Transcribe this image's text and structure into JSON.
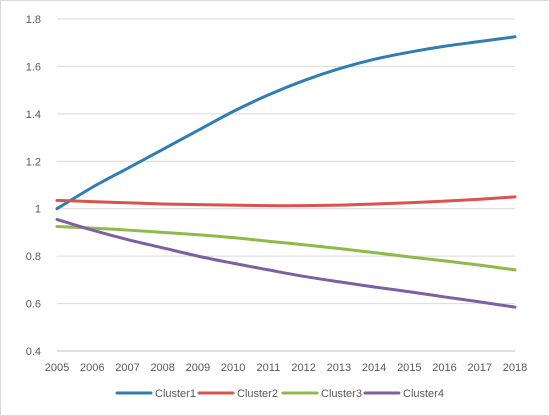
{
  "chart_data": {
    "type": "line",
    "title": "",
    "xlabel": "",
    "ylabel": "",
    "x": [
      "2005",
      "2006",
      "2007",
      "2008",
      "2009",
      "2010",
      "2011",
      "2012",
      "2013",
      "2014",
      "2015",
      "2016",
      "2017",
      "2018"
    ],
    "ylim": [
      0.4,
      1.8
    ],
    "yticks": [
      0.4,
      0.6,
      0.8,
      1,
      1.2,
      1.4,
      1.6,
      1.8
    ],
    "ytick_labels": [
      "0.4",
      "0.6",
      "0.8",
      "1",
      "1.2",
      "1.4",
      "1.6",
      "1.8"
    ],
    "grid": true,
    "legend_position": "bottom",
    "series": [
      {
        "name": "Cluster1",
        "color": "#2E7EB3",
        "values": [
          1.0,
          1.09,
          1.17,
          1.25,
          1.33,
          1.41,
          1.48,
          1.54,
          1.59,
          1.63,
          1.66,
          1.685,
          1.705,
          1.725
        ]
      },
      {
        "name": "Cluster2",
        "color": "#D9534F",
        "values": [
          1.035,
          1.03,
          1.025,
          1.02,
          1.017,
          1.015,
          1.013,
          1.013,
          1.015,
          1.02,
          1.025,
          1.032,
          1.04,
          1.05
        ]
      },
      {
        "name": "Cluster3",
        "color": "#8DBB4A",
        "values": [
          0.925,
          0.918,
          0.91,
          0.9,
          0.89,
          0.878,
          0.863,
          0.848,
          0.832,
          0.815,
          0.797,
          0.78,
          0.762,
          0.742
        ]
      },
      {
        "name": "Cluster4",
        "color": "#7E5FA3",
        "values": [
          0.955,
          0.91,
          0.87,
          0.835,
          0.8,
          0.77,
          0.742,
          0.715,
          0.692,
          0.67,
          0.65,
          0.628,
          0.607,
          0.585
        ]
      }
    ]
  }
}
